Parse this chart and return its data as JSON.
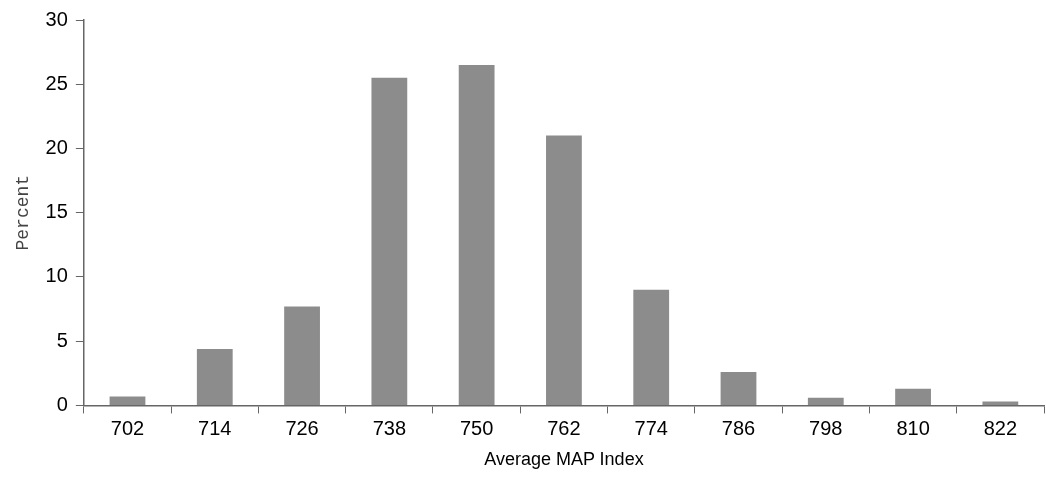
{
  "chart_data": {
    "type": "bar",
    "xlabel": "Average MAP Index",
    "ylabel": "Percent",
    "categories": [
      "702",
      "714",
      "726",
      "738",
      "750",
      "762",
      "774",
      "786",
      "798",
      "810",
      "822"
    ],
    "values": [
      0.7,
      4.4,
      7.7,
      25.5,
      26.5,
      21.0,
      9.0,
      2.6,
      0.6,
      1.3,
      0.3
    ],
    "color": "#8c8c8c",
    "ylim": [
      0,
      30
    ],
    "yticks": [
      0,
      5,
      10,
      15,
      20,
      25,
      30
    ],
    "grid": false,
    "legend": false
  }
}
